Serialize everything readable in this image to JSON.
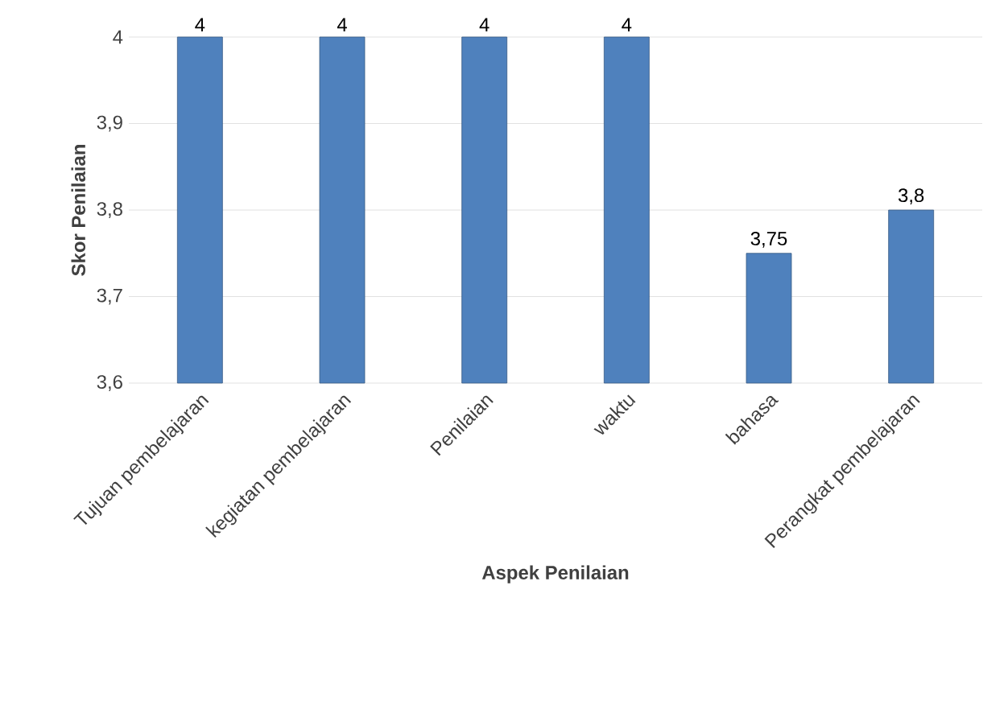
{
  "chart_data": {
    "type": "bar",
    "xlabel": "Aspek Penilaian",
    "ylabel": "Skor Penilaian",
    "categories": [
      "Tujuan pembelajaran",
      "kegiatan pembelajaran",
      "Penilaian",
      "waktu",
      "bahasa",
      "Perangkat pembelajaran"
    ],
    "values": [
      4,
      4,
      4,
      4,
      3.75,
      3.8
    ],
    "value_labels": [
      "4",
      "4",
      "4",
      "4",
      "3,75",
      "3,8"
    ],
    "color": "#4f81bd",
    "ylim": [
      3.6,
      4
    ],
    "yticks": [
      {
        "value": 3.6,
        "label": "3,6"
      },
      {
        "value": 3.7,
        "label": "3,7"
      },
      {
        "value": 3.8,
        "label": "3,8"
      },
      {
        "value": 3.9,
        "label": "3,9"
      },
      {
        "value": 4,
        "label": "4"
      }
    ],
    "grid": "y"
  }
}
